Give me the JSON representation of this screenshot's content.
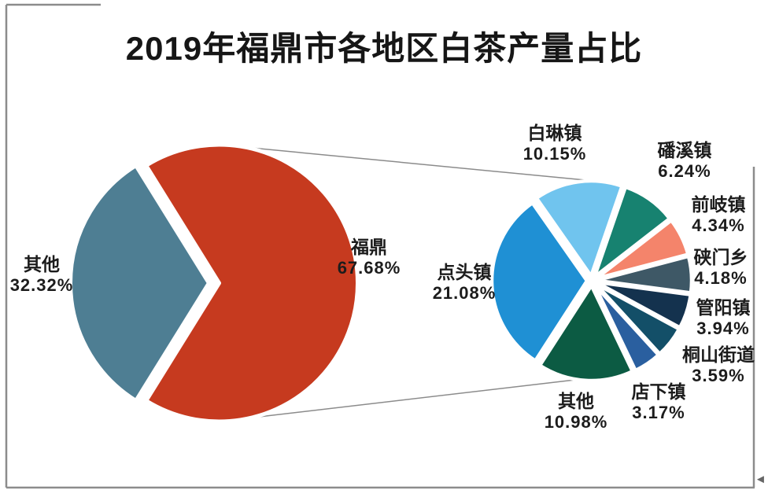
{
  "title": "2019年福鼎市各地区白茶产量占比",
  "corner_glyph": "◄",
  "frame_color": "#8c8c8c",
  "connector_color": "#8b8b8b",
  "chart_data": [
    {
      "type": "pie",
      "name": "primary-pie",
      "description": "2019年福鼎市白茶产量占比（主饼图）",
      "start_angle_deg": 121.83,
      "direction": "clockwise",
      "slices": [
        {
          "label": "福鼎",
          "pct": "67.68%",
          "value": 67.68,
          "color": "#C63A1F"
        },
        {
          "label": "其他",
          "pct": "32.32%",
          "value": 32.32,
          "color": "#4E7E93"
        }
      ]
    },
    {
      "type": "pie",
      "name": "secondary-pie",
      "description": "福鼎市各乡镇白茶产量占比（子饼图，合计67.68%）",
      "start_angle_deg": 125,
      "direction": "clockwise",
      "slices": [
        {
          "label": "白琳镇",
          "pct": "10.15%",
          "value": 10.15,
          "color": "#70C4EE"
        },
        {
          "label": "磻溪镇",
          "pct": "6.24%",
          "value": 6.24,
          "color": "#178270"
        },
        {
          "label": "前岐镇",
          "pct": "4.34%",
          "value": 4.34,
          "color": "#F4846B"
        },
        {
          "label": "硖门乡",
          "pct": "4.18%",
          "value": 4.18,
          "color": "#3E5866"
        },
        {
          "label": "管阳镇",
          "pct": "3.94%",
          "value": 3.94,
          "color": "#14324E"
        },
        {
          "label": "桐山街道",
          "pct": "3.59%",
          "value": 3.59,
          "color": "#134F68"
        },
        {
          "label": "店下镇",
          "pct": "3.17%",
          "value": 3.17,
          "color": "#2A5F9F"
        },
        {
          "label": "其他",
          "pct": "10.98%",
          "value": 10.98,
          "color": "#0C5B43"
        },
        {
          "label": "点头镇",
          "pct": "21.08%",
          "value": 21.08,
          "color": "#1F90D4"
        }
      ]
    }
  ]
}
